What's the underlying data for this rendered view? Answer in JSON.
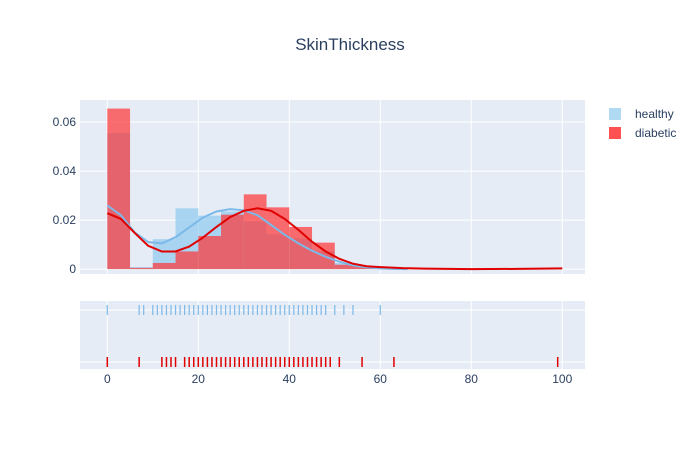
{
  "chart_data": {
    "type": "histogram_distplot",
    "title": "SkinThickness",
    "xlabel": "",
    "ylabel": "",
    "xlim": [
      -6,
      105
    ],
    "ylim": [
      -0.002,
      0.069
    ],
    "x_ticks": [
      0,
      20,
      40,
      60,
      80,
      100
    ],
    "y_ticks": [
      0,
      0.02,
      0.04,
      0.06
    ],
    "y_tick_labels": [
      "0",
      "0.02",
      "0.04",
      "0.06"
    ],
    "legend_position": "top-right",
    "grid": true,
    "colors": {
      "healthy": "#8ec9ef",
      "diabetic": "#ff3333",
      "healthy_line": "#7cb9e8",
      "diabetic_line": "#e00000",
      "plot_bg": "#e5ecf6",
      "grid": "#ffffff"
    },
    "series": [
      {
        "name": "healthy",
        "bins": [
          {
            "x0": 0,
            "x1": 5,
            "density": 0.0555
          },
          {
            "x0": 5,
            "x1": 10,
            "density": 0.0008
          },
          {
            "x0": 10,
            "x1": 15,
            "density": 0.0122
          },
          {
            "x0": 15,
            "x1": 20,
            "density": 0.0248
          },
          {
            "x0": 20,
            "x1": 25,
            "density": 0.0218
          },
          {
            "x0": 25,
            "x1": 30,
            "density": 0.0235
          },
          {
            "x0": 30,
            "x1": 35,
            "density": 0.0195
          },
          {
            "x0": 35,
            "x1": 40,
            "density": 0.0142
          },
          {
            "x0": 40,
            "x1": 45,
            "density": 0.0125
          },
          {
            "x0": 45,
            "x1": 50,
            "density": 0.0072
          },
          {
            "x0": 50,
            "x1": 55,
            "density": 0.0025
          },
          {
            "x0": 55,
            "x1": 60,
            "density": 0.0008
          }
        ],
        "kde": [
          [
            0,
            0.026
          ],
          [
            3,
            0.022
          ],
          [
            6,
            0.015
          ],
          [
            9,
            0.011
          ],
          [
            12,
            0.0105
          ],
          [
            15,
            0.013
          ],
          [
            18,
            0.017
          ],
          [
            21,
            0.021
          ],
          [
            24,
            0.0235
          ],
          [
            27,
            0.0245
          ],
          [
            30,
            0.024
          ],
          [
            33,
            0.022
          ],
          [
            36,
            0.018
          ],
          [
            39,
            0.014
          ],
          [
            42,
            0.0105
          ],
          [
            45,
            0.0075
          ],
          [
            48,
            0.005
          ],
          [
            51,
            0.003
          ],
          [
            54,
            0.0015
          ],
          [
            57,
            0.0007
          ],
          [
            60,
            0.0003
          ],
          [
            63,
            0.0001
          ],
          [
            66,
            0.0
          ]
        ],
        "rug": [
          0,
          7,
          8,
          10,
          11,
          12,
          13,
          14,
          15,
          16,
          17,
          18,
          19,
          20,
          21,
          22,
          23,
          24,
          25,
          26,
          27,
          28,
          29,
          30,
          31,
          32,
          33,
          34,
          35,
          36,
          37,
          38,
          39,
          40,
          41,
          42,
          43,
          44,
          45,
          46,
          47,
          48,
          50,
          52,
          54,
          60
        ]
      },
      {
        "name": "diabetic",
        "bins": [
          {
            "x0": 0,
            "x1": 5,
            "density": 0.0655
          },
          {
            "x0": 5,
            "x1": 10,
            "density": 0.0005
          },
          {
            "x0": 10,
            "x1": 15,
            "density": 0.0025
          },
          {
            "x0": 15,
            "x1": 20,
            "density": 0.0072
          },
          {
            "x0": 20,
            "x1": 25,
            "density": 0.0135
          },
          {
            "x0": 25,
            "x1": 30,
            "density": 0.0222
          },
          {
            "x0": 30,
            "x1": 35,
            "density": 0.0305
          },
          {
            "x0": 35,
            "x1": 40,
            "density": 0.0252
          },
          {
            "x0": 40,
            "x1": 45,
            "density": 0.0172
          },
          {
            "x0": 45,
            "x1": 50,
            "density": 0.0108
          },
          {
            "x0": 50,
            "x1": 55,
            "density": 0.0018
          },
          {
            "x0": 55,
            "x1": 60,
            "density": 0.0008
          }
        ],
        "kde": [
          [
            0,
            0.0228
          ],
          [
            3,
            0.0205
          ],
          [
            6,
            0.0148
          ],
          [
            9,
            0.0095
          ],
          [
            12,
            0.0072
          ],
          [
            15,
            0.0072
          ],
          [
            18,
            0.0092
          ],
          [
            21,
            0.0128
          ],
          [
            24,
            0.0172
          ],
          [
            27,
            0.0212
          ],
          [
            30,
            0.0238
          ],
          [
            33,
            0.0248
          ],
          [
            36,
            0.0238
          ],
          [
            39,
            0.0205
          ],
          [
            42,
            0.016
          ],
          [
            45,
            0.0112
          ],
          [
            48,
            0.0072
          ],
          [
            51,
            0.0042
          ],
          [
            54,
            0.0022
          ],
          [
            57,
            0.0012
          ],
          [
            60,
            0.0008
          ],
          [
            65,
            0.0004
          ],
          [
            70,
            0.0002
          ],
          [
            80,
            0.0
          ],
          [
            90,
            0.0001
          ],
          [
            100,
            0.0003
          ]
        ],
        "rug": [
          0,
          7,
          12,
          13,
          14,
          15,
          17,
          18,
          19,
          20,
          21,
          22,
          23,
          24,
          25,
          26,
          27,
          28,
          29,
          30,
          31,
          32,
          33,
          34,
          35,
          36,
          37,
          38,
          39,
          40,
          41,
          42,
          43,
          44,
          45,
          46,
          47,
          48,
          49,
          51,
          56,
          63,
          99
        ]
      }
    ]
  }
}
